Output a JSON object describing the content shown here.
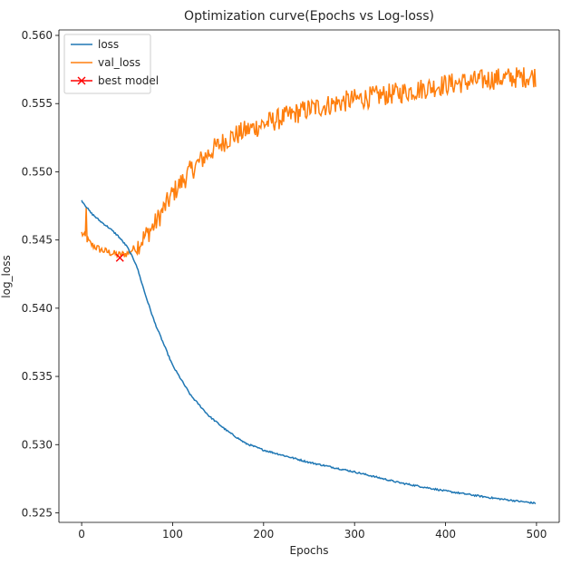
{
  "chart_data": {
    "type": "line",
    "title": "Optimization curve(Epochs vs Log-loss)",
    "xlabel": "Epochs",
    "ylabel": "log_loss",
    "xlim": [
      -25,
      525
    ],
    "ylim": [
      0.5243,
      0.5604
    ],
    "xticks": [
      0,
      100,
      200,
      300,
      400,
      500
    ],
    "yticks": [
      0.525,
      0.53,
      0.535,
      0.54,
      0.545,
      0.55,
      0.555,
      0.56
    ],
    "ytick_labels": [
      "0.525",
      "0.530",
      "0.535",
      "0.540",
      "0.545",
      "0.550",
      "0.555",
      "0.560"
    ],
    "grid": false,
    "legend_position": "top-left",
    "n_epochs": 500,
    "series": [
      {
        "name": "loss",
        "color": "#1f77b4",
        "keypoints": [
          [
            0,
            0.5479
          ],
          [
            10,
            0.547
          ],
          [
            20,
            0.5464
          ],
          [
            30,
            0.5459
          ],
          [
            40,
            0.5453
          ],
          [
            50,
            0.5445
          ],
          [
            60,
            0.5432
          ],
          [
            70,
            0.541
          ],
          [
            80,
            0.539
          ],
          [
            100,
            0.5358
          ],
          [
            120,
            0.5336
          ],
          [
            140,
            0.5321
          ],
          [
            160,
            0.531
          ],
          [
            180,
            0.5301
          ],
          [
            200,
            0.5296
          ],
          [
            250,
            0.5287
          ],
          [
            300,
            0.528
          ],
          [
            350,
            0.5272
          ],
          [
            400,
            0.5266
          ],
          [
            450,
            0.5261
          ],
          [
            499,
            0.5257
          ]
        ]
      },
      {
        "name": "val_loss",
        "color": "#ff7f0e",
        "keypoints": [
          [
            0,
            0.5455
          ],
          [
            10,
            0.5447
          ],
          [
            20,
            0.5443
          ],
          [
            30,
            0.5441
          ],
          [
            40,
            0.5439
          ],
          [
            50,
            0.544
          ],
          [
            60,
            0.5445
          ],
          [
            80,
            0.5461
          ],
          [
            100,
            0.5484
          ],
          [
            120,
            0.5501
          ],
          [
            140,
            0.5514
          ],
          [
            160,
            0.5524
          ],
          [
            180,
            0.553
          ],
          [
            200,
            0.5535
          ],
          [
            250,
            0.5546
          ],
          [
            300,
            0.5553
          ],
          [
            350,
            0.5558
          ],
          [
            400,
            0.5564
          ],
          [
            450,
            0.5568
          ],
          [
            499,
            0.557
          ]
        ],
        "noise_amplitude": 0.0008
      },
      {
        "name": "best model",
        "color": "#ff0000",
        "marker": "x",
        "points": [
          [
            42,
            0.5437
          ]
        ]
      }
    ]
  }
}
